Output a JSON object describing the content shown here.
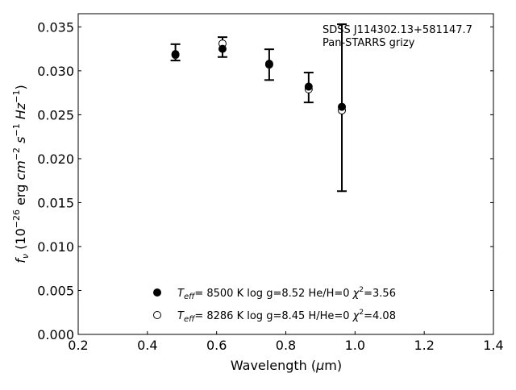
{
  "chart_data": {
    "type": "scatter",
    "title": "",
    "xlabel_main": "Wavelength (",
    "xlabel_mu": "μ",
    "xlabel_unit": "m)",
    "ylabel": "f_ν (10^-26 erg cm^-2 s^-1 Hz^-1)",
    "xlim": [
      0.2,
      1.4
    ],
    "ylim": [
      0.0,
      0.0365
    ],
    "xticks": [
      "0.2",
      "0.4",
      "0.6",
      "0.8",
      "1.0",
      "1.2",
      "1.4"
    ],
    "yticks": [
      "0.000",
      "0.005",
      "0.010",
      "0.015",
      "0.020",
      "0.025",
      "0.030",
      "0.035"
    ],
    "grid": false,
    "legend_position": "bottom-center",
    "annotation": {
      "object": "SDSS J114302.13+581147.7",
      "survey": "Pan-STARRS grizy"
    },
    "observed": {
      "x": [
        0.481,
        0.617,
        0.752,
        0.866,
        0.962
      ],
      "y": [
        0.0321,
        0.0327,
        0.0307,
        0.0281,
        0.0258
      ],
      "yerr": [
        0.00093,
        0.00113,
        0.00175,
        0.0017,
        0.0095
      ]
    },
    "series": [
      {
        "name": "He/H=0",
        "teff": "8500 K",
        "logg": "8.52",
        "composition": "He/H=0",
        "chi2": "3.56",
        "marker": "filled",
        "x": [
          0.481,
          0.617,
          0.752,
          0.866,
          0.962
        ],
        "y": [
          0.0319,
          0.0325,
          0.0308,
          0.0282,
          0.0259
        ]
      },
      {
        "name": "H/He=0",
        "teff": "8286 K",
        "logg": "8.45",
        "composition": "H/He=0",
        "chi2": "4.08",
        "marker": "open",
        "x": [
          0.481,
          0.617,
          0.752,
          0.866,
          0.962
        ],
        "y": [
          0.0318,
          0.0331,
          0.0307,
          0.0279,
          0.0255
        ]
      }
    ]
  }
}
